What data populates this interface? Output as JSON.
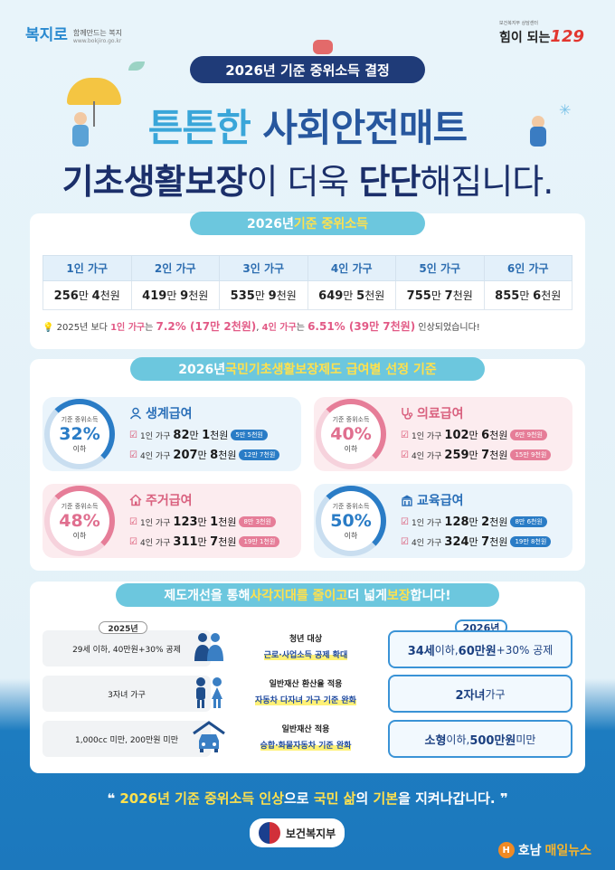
{
  "brand": {
    "logo": "복지로",
    "tagline": "함께만드는 복지",
    "url": "www.bokjiro.go.kr"
  },
  "badge": {
    "caption": "보건복지부 상담센터",
    "text": "힘이 되는",
    "number": "129"
  },
  "title_pill": "2026년 기준 중위소득 결정",
  "headline1": {
    "a": "튼튼한 ",
    "b": "사회안전매트"
  },
  "headline2": {
    "a": "기초생활보장",
    "b": "이 더욱 ",
    "c": "단단",
    "d": "해집니다."
  },
  "section1": {
    "title_a": "2026년 ",
    "title_b": "기준 중위소득",
    "headers": [
      "1인 가구",
      "2인 가구",
      "3인 가구",
      "4인 가구",
      "5인 가구",
      "6인 가구"
    ],
    "cells": [
      {
        "a": "256",
        "b": "만 ",
        "c": "4",
        "d": "천원"
      },
      {
        "a": "419",
        "b": "만 ",
        "c": "9",
        "d": "천원"
      },
      {
        "a": "535",
        "b": "만 ",
        "c": "9",
        "d": "천원"
      },
      {
        "a": "649",
        "b": "만 ",
        "c": "5",
        "d": "천원"
      },
      {
        "a": "755",
        "b": "만 ",
        "c": "7",
        "d": "천원"
      },
      {
        "a": "855",
        "b": "만 ",
        "c": "6",
        "d": "천원"
      }
    ],
    "note": {
      "a": "2025년 보다 ",
      "b": "1인 가구",
      "c": "는 ",
      "d": "7.2% (17만 2천원)",
      "e": ", ",
      "f": "4인 가구",
      "g": "는 ",
      "h": "6.51% (39만 7천원)",
      "i": " 인상되었습니다!"
    }
  },
  "section2": {
    "title_a": "2026년 ",
    "title_b": "국민기초생활보장제도 급여별 선정 기준",
    "ring_label": "기준 중위소득",
    "ring_below": "이하",
    "benefits": [
      {
        "name": "생계급여",
        "pct": "32%",
        "row1_label": "1인 가구",
        "row1_amt": "82",
        "row1_amt2": "1",
        "row1_up": "5만 5천원",
        "row2_label": "4인 가구",
        "row2_amt": "207",
        "row2_amt2": "8",
        "row2_up": "12만 7천원"
      },
      {
        "name": "의료급여",
        "pct": "40%",
        "row1_label": "1인 가구",
        "row1_amt": "102",
        "row1_amt2": "6",
        "row1_up": "6만 9천원",
        "row2_label": "4인 가구",
        "row2_amt": "259",
        "row2_amt2": "7",
        "row2_up": "15만 9천원"
      },
      {
        "name": "주거급여",
        "pct": "48%",
        "row1_label": "1인 가구",
        "row1_amt": "123",
        "row1_amt2": "1",
        "row1_up": "8만 3천원",
        "row2_label": "4인 가구",
        "row2_amt": "311",
        "row2_amt2": "7",
        "row2_up": "19만 1천원"
      },
      {
        "name": "교육급여",
        "pct": "50%",
        "row1_label": "1인 가구",
        "row1_amt": "128",
        "row1_amt2": "2",
        "row1_up": "8만 6천원",
        "row2_label": "4인 가구",
        "row2_amt": "324",
        "row2_amt2": "7",
        "row2_up": "19만 8천원"
      }
    ],
    "unit_man": "만 ",
    "unit_cheon": "천원"
  },
  "section3": {
    "title_a": "제도개선을 통해 ",
    "title_b": "사각지대를 줄이고",
    "title_c": " 더 넓게 ",
    "title_d": "보장",
    "title_e": "합니다!",
    "year_old": "2025년",
    "year_new": "2026년",
    "rows": [
      {
        "old": "29세 이하, 40만원+30% 공제",
        "mid1": "청년 대상",
        "mid2": "근로·사업소득 공제 확대",
        "new_a": "34세",
        "new_b": " 이하, ",
        "new_c": "60만원",
        "new_d": "+30% 공제"
      },
      {
        "old": "3자녀 가구",
        "mid1": "일반재산 환산율 적용",
        "mid2": "자동차 다자녀 가구 기준 완화",
        "new_a": "2자녀",
        "new_b": " 가구",
        "new_c": "",
        "new_d": ""
      },
      {
        "old": "1,000cc 미만, 200만원 미만",
        "mid1": "일반재산 적용",
        "mid2": "승합·화물자동차 기준 완화",
        "new_a": "소형",
        "new_b": " 이하, ",
        "new_c": "500만원",
        "new_d": " 미만"
      }
    ]
  },
  "motto": {
    "q1": "❝ ",
    "a": "2026년 기준 중위소득 인상",
    "b": "으로 ",
    "c": "국민 삶",
    "d": "의 ",
    "e": "기본",
    "f": "을 지켜나갑니다.",
    "q2": " ❞"
  },
  "ministry": "보건복지부",
  "news": {
    "a": "호남",
    "b": "매일뉴스"
  },
  "colors": {
    "navy": "#1f3b78",
    "sky": "#6cc7de",
    "blue": "#2a7cc6",
    "pink": "#e67d98",
    "yellow": "#ffe14d"
  }
}
